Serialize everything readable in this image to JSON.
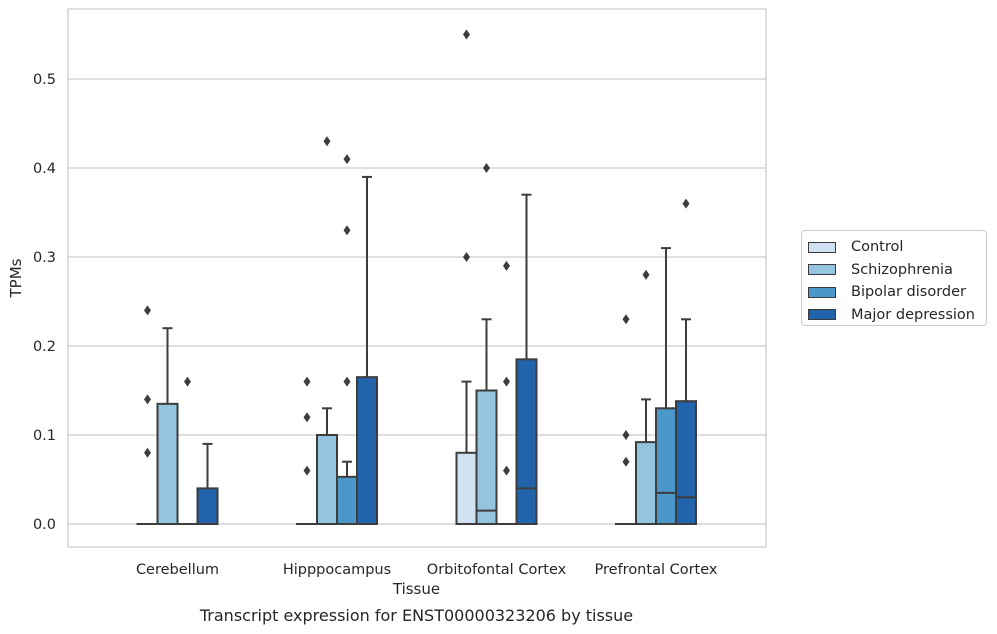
{
  "chart_data": {
    "type": "boxplot",
    "xlabel": "Tissue",
    "ylabel": "TPMs",
    "caption": "Transcript expression for ENST00000323206 by tissue",
    "ylim": [
      -0.027,
      0.58
    ],
    "yticks": [
      "0.0",
      "0.1",
      "0.2",
      "0.3",
      "0.4",
      "0.5"
    ],
    "ytick_values": [
      0,
      0.1,
      0.2,
      0.3,
      0.4,
      0.5
    ],
    "grid": "horizontal",
    "legend_placement": "right, outside plot",
    "categories": [
      "Cerebellum",
      "Hipppocampus",
      "Orbitofontal Cortex",
      "Prefrontal Cortex"
    ],
    "series": [
      {
        "name": "Control",
        "color": "#d0e1f2",
        "boxes": [
          {
            "q1": 0,
            "median": 0,
            "q3": 0,
            "whisker_low": 0,
            "whisker_high": 0,
            "outliers": [
              0.08,
              0.14,
              0.24
            ]
          },
          {
            "q1": 0,
            "median": 0,
            "q3": 0,
            "whisker_low": 0,
            "whisker_high": 0,
            "outliers": [
              0.06,
              0.12,
              0.16
            ]
          },
          {
            "q1": 0,
            "median": 0,
            "q3": 0.08,
            "whisker_low": 0,
            "whisker_high": 0.16,
            "outliers": [
              0.3,
              0.55
            ]
          },
          {
            "q1": 0,
            "median": 0,
            "q3": 0,
            "whisker_low": 0,
            "whisker_high": 0,
            "outliers": [
              0.07,
              0.1,
              0.23
            ]
          }
        ]
      },
      {
        "name": "Schizophrenia",
        "color": "#94c4df",
        "boxes": [
          {
            "q1": 0,
            "median": 0,
            "q3": 0.135,
            "whisker_low": 0,
            "whisker_high": 0.22,
            "outliers": []
          },
          {
            "q1": 0,
            "median": 0,
            "q3": 0.1,
            "whisker_low": 0,
            "whisker_high": 0.13,
            "outliers": [
              0.43
            ]
          },
          {
            "q1": 0,
            "median": 0.015,
            "q3": 0.15,
            "whisker_low": 0,
            "whisker_high": 0.23,
            "outliers": [
              0.4
            ]
          },
          {
            "q1": 0,
            "median": 0,
            "q3": 0.092,
            "whisker_low": 0,
            "whisker_high": 0.14,
            "outliers": [
              0.28
            ]
          }
        ]
      },
      {
        "name": "Bipolar disorder",
        "color": "#4a98c9",
        "boxes": [
          {
            "q1": 0,
            "median": 0,
            "q3": 0,
            "whisker_low": 0,
            "whisker_high": 0,
            "outliers": [
              0.16
            ]
          },
          {
            "q1": 0,
            "median": 0,
            "q3": 0.053,
            "whisker_low": 0,
            "whisker_high": 0.07,
            "outliers": [
              0.16,
              0.33,
              0.41
            ]
          },
          {
            "q1": 0,
            "median": 0,
            "q3": 0,
            "whisker_low": 0,
            "whisker_high": 0,
            "outliers": [
              0.06,
              0.16,
              0.29
            ]
          },
          {
            "q1": 0,
            "median": 0.035,
            "q3": 0.13,
            "whisker_low": 0,
            "whisker_high": 0.31,
            "outliers": []
          }
        ]
      },
      {
        "name": "Major depression",
        "color": "#2164ab",
        "boxes": [
          {
            "q1": 0,
            "median": 0,
            "q3": 0.04,
            "whisker_low": 0,
            "whisker_high": 0.09,
            "outliers": []
          },
          {
            "q1": 0,
            "median": 0,
            "q3": 0.165,
            "whisker_low": 0,
            "whisker_high": 0.39,
            "outliers": []
          },
          {
            "q1": 0,
            "median": 0.04,
            "q3": 0.185,
            "whisker_low": 0,
            "whisker_high": 0.37,
            "outliers": []
          },
          {
            "q1": 0,
            "median": 0.03,
            "q3": 0.138,
            "whisker_low": 0,
            "whisker_high": 0.23,
            "outliers": [
              0.36
            ]
          }
        ]
      }
    ]
  }
}
